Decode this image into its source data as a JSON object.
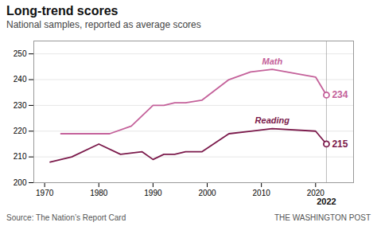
{
  "chart_data": {
    "type": "line",
    "title": "Long-trend scores",
    "subtitle": "National samples, reported as average scores",
    "source": "Source: The Nation’s Report Card",
    "watermark": "THE WASHINGTON POST",
    "series": [
      {
        "name": "Math",
        "color": "#c4619a",
        "x": [
          1973,
          1978,
          1982,
          1986,
          1990,
          1992,
          1994,
          1996,
          1999,
          2004,
          2008,
          2012,
          2020,
          2022
        ],
        "values": [
          219,
          219,
          219,
          222,
          230,
          230,
          231,
          231,
          232,
          240,
          243,
          244,
          241,
          234
        ]
      },
      {
        "name": "Reading",
        "color": "#7b1a4b",
        "x": [
          1971,
          1975,
          1980,
          1984,
          1988,
          1990,
          1992,
          1994,
          1996,
          1999,
          2004,
          2008,
          2012,
          2020,
          2022
        ],
        "values": [
          208,
          210,
          215,
          211,
          212,
          209,
          211,
          211,
          212,
          212,
          219,
          220,
          221,
          220,
          215
        ]
      }
    ],
    "xlim": [
      1968,
      2027
    ],
    "xticks": [
      1970,
      1980,
      1990,
      2000,
      2010,
      2020
    ],
    "ylim": [
      200,
      255
    ],
    "yticks": [
      200,
      210,
      220,
      230,
      240,
      250
    ],
    "grid": true,
    "annotations": [
      {
        "x": 2022,
        "text": "2022"
      },
      {
        "x": 2022,
        "y": 234,
        "text": "234",
        "color": "#c4619a"
      },
      {
        "x": 2022,
        "y": 215,
        "text": "215",
        "color": "#7b1a4b"
      }
    ]
  }
}
